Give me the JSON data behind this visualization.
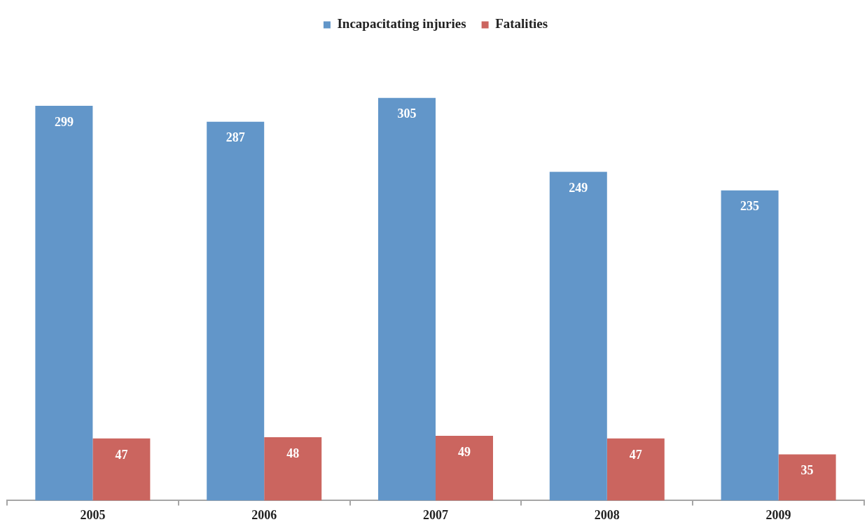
{
  "chart_data": {
    "type": "bar",
    "categories": [
      "2005",
      "2006",
      "2007",
      "2008",
      "2009"
    ],
    "series": [
      {
        "name": "Incapacitating injuries",
        "color": "#6296c9",
        "values": [
          299,
          287,
          305,
          249,
          235
        ]
      },
      {
        "name": "Fatalities",
        "color": "#cb655f",
        "values": [
          47,
          48,
          49,
          47,
          35
        ]
      }
    ],
    "data_labels": true,
    "legend": "top",
    "grid": false,
    "tick_labels": "x"
  }
}
